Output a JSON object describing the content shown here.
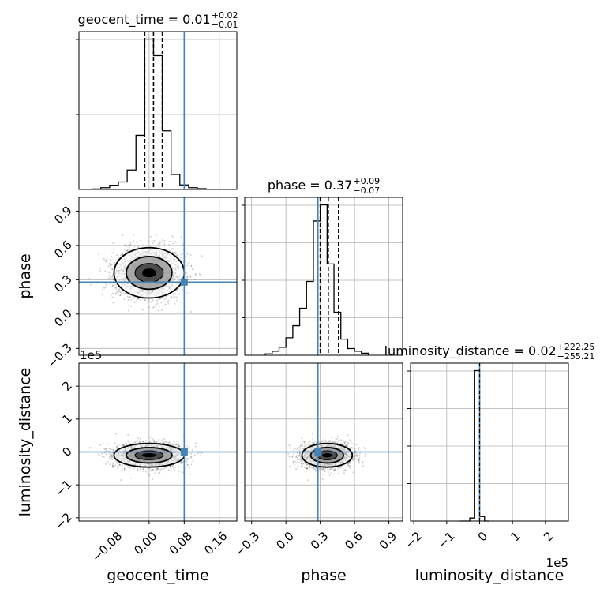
{
  "chart_data": {
    "type": "corner",
    "parameters": [
      "geocent_time",
      "phase",
      "luminosity_distance"
    ],
    "axis_labels": {
      "x": [
        "geocent_time",
        "phase",
        "luminosity_distance"
      ],
      "y": [
        "phase",
        "luminosity_distance"
      ]
    },
    "titles": [
      {
        "param": "geocent_time",
        "main": "geocent_time = 0.01",
        "plus": "+0.02",
        "minus": "−0.01"
      },
      {
        "param": "phase",
        "main": "phase = 0.37",
        "plus": "+0.09",
        "minus": "−0.07"
      },
      {
        "param": "luminosity_distance",
        "main": "luminosity_distance = 0.02",
        "plus": "+222.25",
        "minus": "−255.21"
      }
    ],
    "axes": {
      "geocent_time": {
        "range": [
          -0.16,
          0.2
        ],
        "ticks": [
          -0.08,
          0.0,
          0.08,
          0.16
        ],
        "tick_labels": [
          "−0.08",
          "0.00",
          "0.08",
          "0.16"
        ]
      },
      "phase": {
        "range": [
          -0.36,
          1.02
        ],
        "ticks": [
          -0.3,
          0.0,
          0.3,
          0.6,
          0.9
        ],
        "tick_labels": [
          "−0.3",
          "0.0",
          "0.3",
          "0.6",
          "0.9"
        ]
      },
      "luminosity_distance": {
        "range": [
          -2.1,
          2.7
        ],
        "ticks": [
          -2,
          -1,
          0,
          1,
          2
        ],
        "tick_labels": [
          "−2",
          "−1",
          "0",
          "1",
          "2"
        ],
        "offset_label": "1e5",
        "scale": 100000
      }
    },
    "truths": {
      "geocent_time": 0.08,
      "phase": 0.28,
      "luminosity_distance": 0.0
    },
    "truth_color": "#4682b4",
    "quantiles": {
      "geocent_time": [
        -0.01,
        0.01,
        0.03
      ],
      "phase": [
        0.3,
        0.37,
        0.46
      ]
    },
    "histograms": {
      "geocent_time": {
        "edges": [
          -0.13,
          -0.11,
          -0.09,
          -0.07,
          -0.05,
          -0.03,
          -0.01,
          0.01,
          0.03,
          0.05,
          0.07,
          0.09,
          0.11,
          0.13,
          0.15
        ],
        "counts": [
          0.3,
          1.2,
          2.8,
          5,
          13,
          36,
          100,
          89,
          39,
          10,
          3,
          1.2,
          0.5,
          0.2
        ]
      },
      "phase": {
        "edges": [
          -0.18,
          -0.12,
          -0.06,
          0.0,
          0.06,
          0.12,
          0.18,
          0.24,
          0.3,
          0.36,
          0.42,
          0.48,
          0.54,
          0.6,
          0.66,
          0.72
        ],
        "counts": [
          1,
          3,
          6,
          13,
          22,
          35,
          55,
          100,
          112,
          68,
          32,
          12,
          5,
          3,
          1.5
        ]
      },
      "luminosity_distance": {
        "edges": [
          -0.6,
          -0.3,
          -0.15,
          0.0,
          0.15,
          0.3
        ],
        "counts": [
          0,
          2,
          100,
          3,
          0
        ]
      }
    },
    "sample_cloud": {
      "center": [
        0.0,
        0.36,
        -0.1
      ],
      "spread": [
        0.04,
        0.11,
        0.18
      ]
    },
    "grid": true,
    "legend": false
  }
}
